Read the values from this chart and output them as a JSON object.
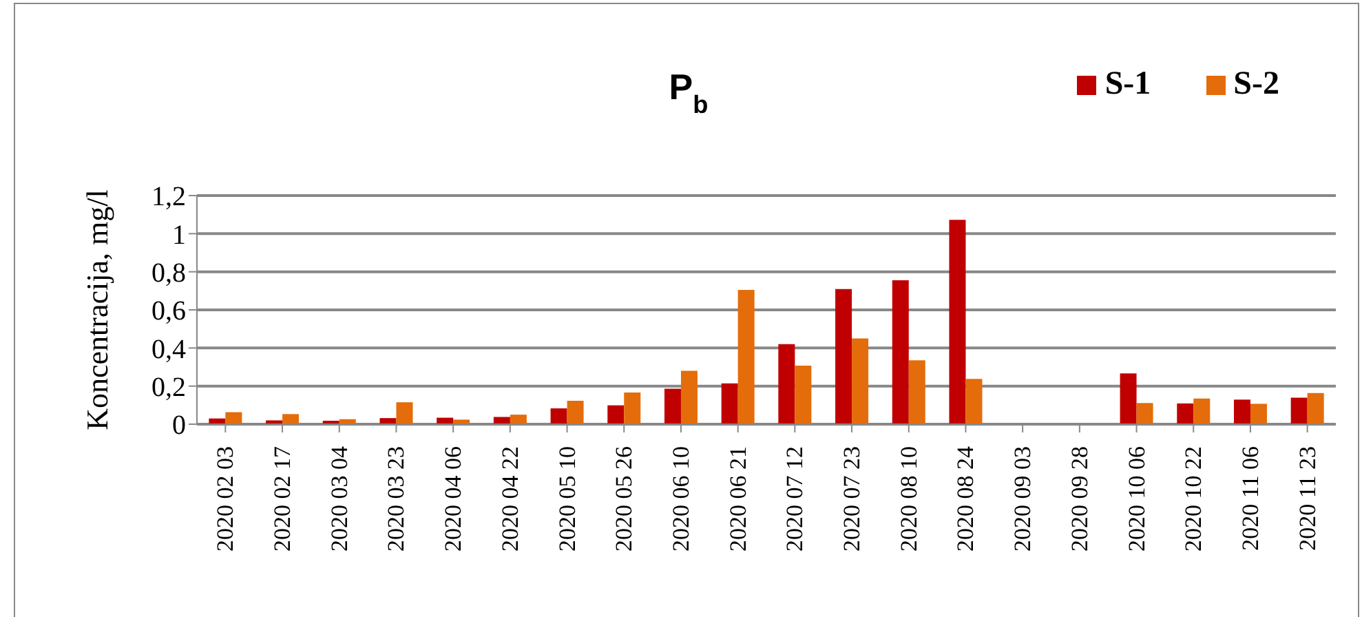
{
  "chart_data": {
    "type": "bar",
    "title": "P$_{b}$",
    "ylabel": "Koncentracija, mg/l",
    "categories": [
      "2020 02 03",
      "2020 02 17",
      "2020 03 04",
      "2020 03 23",
      "2020 04 06",
      "2020 04 22",
      "2020 05 10",
      "2020 05 26",
      "2020 06 10",
      "2020 06 21",
      "2020 07 12",
      "2020 07 23",
      "2020 08 10",
      "2020 08 24",
      "2020 09 03",
      "2020 09 28",
      "2020 10 06",
      "2020 10 22",
      "2020 11 06",
      "2020 11 23"
    ],
    "series": [
      {
        "name": "S-1",
        "color": "#c00000",
        "values": [
          0.03,
          0.02,
          0.018,
          0.032,
          0.034,
          0.038,
          0.083,
          0.099,
          0.186,
          0.214,
          0.42,
          0.709,
          0.755,
          1.073,
          null,
          null,
          0.267,
          0.109,
          0.129,
          0.139
        ]
      },
      {
        "name": "S-2",
        "color": "#e46c0a",
        "values": [
          0.063,
          0.053,
          0.026,
          0.115,
          0.024,
          0.05,
          0.123,
          0.166,
          0.28,
          0.705,
          0.307,
          0.45,
          0.335,
          0.238,
          null,
          null,
          0.111,
          0.135,
          0.107,
          0.164
        ]
      }
    ],
    "ylim": [
      0,
      1.2
    ],
    "yticks": [
      {
        "value": 0,
        "label": "0"
      },
      {
        "value": 0.2,
        "label": "0,2"
      },
      {
        "value": 0.4,
        "label": "0,4"
      },
      {
        "value": 0.6,
        "label": "0,6"
      },
      {
        "value": 0.8,
        "label": "0,8"
      },
      {
        "value": 1,
        "label": "1"
      },
      {
        "value": 1.2,
        "label": "1,2"
      }
    ],
    "grid": "y",
    "legend": "top right"
  }
}
